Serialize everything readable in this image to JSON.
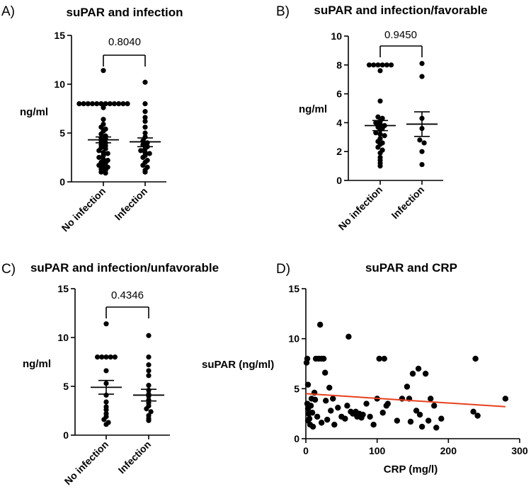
{
  "chart_data": [
    {
      "id": "A",
      "type": "scatter",
      "panel_letter": "A)",
      "title": "suPAR and infection",
      "ylabel": "ng/ml",
      "ylim": [
        0,
        15
      ],
      "yticks": [
        0,
        5,
        10,
        15
      ],
      "categories": [
        "No infection",
        "Infection"
      ],
      "comparison_p": "0.8040",
      "series": [
        {
          "name": "No infection",
          "mean": 4.3,
          "sem_low": 4.0,
          "sem_high": 4.6,
          "values": [
            11.4,
            8.0,
            8.0,
            8.0,
            8.0,
            8.0,
            8.0,
            8.0,
            8.0,
            8.0,
            8.0,
            8.0,
            8.0,
            7.6,
            6.4,
            5.9,
            5.6,
            5.4,
            5.2,
            4.9,
            4.7,
            4.5,
            4.4,
            4.2,
            4.0,
            3.8,
            3.7,
            3.5,
            3.4,
            3.2,
            3.0,
            2.9,
            2.7,
            2.5,
            2.3,
            2.2,
            2.0,
            1.9,
            1.7,
            1.6,
            1.5,
            1.3,
            1.2,
            1.0,
            0.9
          ]
        },
        {
          "name": "Infection",
          "mean": 4.1,
          "sem_low": 3.6,
          "sem_high": 4.5,
          "values": [
            10.2,
            8.0,
            7.2,
            6.6,
            6.2,
            5.6,
            5.0,
            4.6,
            4.2,
            4.0,
            3.8,
            3.6,
            3.4,
            3.2,
            3.0,
            2.9,
            2.7,
            2.5,
            2.2,
            2.0,
            1.7,
            1.5,
            1.2,
            1.0
          ]
        }
      ]
    },
    {
      "id": "B",
      "type": "scatter",
      "panel_letter": "B)",
      "title": "suPAR and infection/favorable",
      "ylabel": "ng/ml",
      "ylim": [
        0,
        10
      ],
      "yticks": [
        0,
        2,
        4,
        6,
        8,
        10
      ],
      "categories": [
        "No infection",
        "Infection"
      ],
      "comparison_p": "0.9450",
      "series": [
        {
          "name": "No infection",
          "mean": 3.8,
          "sem_low": 3.45,
          "sem_high": 4.15,
          "values": [
            8.0,
            8.0,
            8.0,
            8.0,
            8.0,
            8.0,
            7.6,
            5.5,
            4.4,
            4.3,
            4.1,
            4.0,
            3.9,
            3.8,
            3.7,
            3.6,
            3.5,
            3.3,
            3.2,
            3.1,
            2.9,
            2.7,
            2.6,
            2.5,
            2.3,
            2.1,
            1.9,
            1.6,
            1.4,
            1.2,
            1.0
          ]
        },
        {
          "name": "Infection",
          "mean": 3.9,
          "sem_low": 3.05,
          "sem_high": 4.75,
          "values": [
            8.1,
            7.2,
            4.3,
            3.6,
            2.8,
            2.6,
            2.0,
            1.1
          ]
        }
      ]
    },
    {
      "id": "C",
      "type": "scatter",
      "panel_letter": "C)",
      "title": "suPAR and infection/unfavorable",
      "ylabel": "ng/ml",
      "ylim": [
        0,
        15
      ],
      "yticks": [
        0,
        5,
        10,
        15
      ],
      "categories": [
        "No infection",
        "Infection"
      ],
      "comparison_p": "0.4346",
      "series": [
        {
          "name": "No infection",
          "mean": 4.9,
          "sem_low": 4.2,
          "sem_high": 5.6,
          "values": [
            11.4,
            8.0,
            8.0,
            8.0,
            8.0,
            8.0,
            6.6,
            5.3,
            4.1,
            3.4,
            2.9,
            2.6,
            2.2,
            1.9,
            1.6,
            1.3,
            1.1
          ]
        },
        {
          "name": "Infection",
          "mean": 4.1,
          "sem_low": 3.5,
          "sem_high": 4.7,
          "values": [
            10.2,
            8.0,
            7.2,
            6.6,
            6.1,
            5.1,
            4.6,
            4.2,
            4.0,
            3.6,
            3.3,
            3.0,
            2.7,
            2.4,
            2.0,
            1.7,
            1.5
          ]
        }
      ]
    },
    {
      "id": "D",
      "type": "scatter",
      "panel_letter": "D)",
      "title": "suPAR and CRP",
      "xlabel": "CRP (mg/l)",
      "ylabel": "suPAR (ng/ml)",
      "xlim": [
        0,
        300
      ],
      "ylim": [
        0,
        15
      ],
      "xticks": [
        0,
        100,
        200,
        300
      ],
      "yticks": [
        0,
        5,
        10,
        15
      ],
      "regression": {
        "x": [
          0,
          280
        ],
        "y": [
          4.5,
          3.2
        ],
        "color": "#e8401c"
      },
      "points": [
        {
          "x": 1,
          "y": 7.6
        },
        {
          "x": 2,
          "y": 8.0
        },
        {
          "x": 3,
          "y": 5.4
        },
        {
          "x": 2,
          "y": 3.5
        },
        {
          "x": 3,
          "y": 3.0
        },
        {
          "x": 4,
          "y": 2.5
        },
        {
          "x": 5,
          "y": 2.0
        },
        {
          "x": 6,
          "y": 1.4
        },
        {
          "x": 3,
          "y": 1.8
        },
        {
          "x": 7,
          "y": 3.3
        },
        {
          "x": 8,
          "y": 4.0
        },
        {
          "x": 9,
          "y": 2.6
        },
        {
          "x": 10,
          "y": 1.2
        },
        {
          "x": 12,
          "y": 4.6
        },
        {
          "x": 13,
          "y": 3.9
        },
        {
          "x": 14,
          "y": 8.0
        },
        {
          "x": 16,
          "y": 2.2
        },
        {
          "x": 18,
          "y": 8.0
        },
        {
          "x": 20,
          "y": 11.4
        },
        {
          "x": 22,
          "y": 8.0
        },
        {
          "x": 22,
          "y": 1.6
        },
        {
          "x": 25,
          "y": 8.0
        },
        {
          "x": 27,
          "y": 6.6
        },
        {
          "x": 28,
          "y": 3.8
        },
        {
          "x": 30,
          "y": 1.9
        },
        {
          "x": 33,
          "y": 5.1
        },
        {
          "x": 35,
          "y": 2.8
        },
        {
          "x": 38,
          "y": 4.0
        },
        {
          "x": 40,
          "y": 1.4
        },
        {
          "x": 45,
          "y": 3.1
        },
        {
          "x": 50,
          "y": 2.2
        },
        {
          "x": 55,
          "y": 2.0
        },
        {
          "x": 58,
          "y": 3.3
        },
        {
          "x": 60,
          "y": 10.2
        },
        {
          "x": 63,
          "y": 2.7
        },
        {
          "x": 66,
          "y": 2.5
        },
        {
          "x": 70,
          "y": 2.7
        },
        {
          "x": 72,
          "y": 2.2
        },
        {
          "x": 75,
          "y": 2.5
        },
        {
          "x": 78,
          "y": 2.1
        },
        {
          "x": 80,
          "y": 2.4
        },
        {
          "x": 85,
          "y": 3.5
        },
        {
          "x": 90,
          "y": 2.2
        },
        {
          "x": 95,
          "y": 1.4
        },
        {
          "x": 100,
          "y": 4.0
        },
        {
          "x": 103,
          "y": 8.0
        },
        {
          "x": 108,
          "y": 2.6
        },
        {
          "x": 110,
          "y": 8.0
        },
        {
          "x": 113,
          "y": 3.3
        },
        {
          "x": 115,
          "y": 3.5
        },
        {
          "x": 128,
          "y": 1.8
        },
        {
          "x": 135,
          "y": 4.0
        },
        {
          "x": 142,
          "y": 5.2
        },
        {
          "x": 145,
          "y": 4.0
        },
        {
          "x": 147,
          "y": 1.7
        },
        {
          "x": 150,
          "y": 6.5
        },
        {
          "x": 155,
          "y": 2.8
        },
        {
          "x": 158,
          "y": 7.0
        },
        {
          "x": 160,
          "y": 2.4
        },
        {
          "x": 163,
          "y": 1.2
        },
        {
          "x": 168,
          "y": 6.5
        },
        {
          "x": 172,
          "y": 1.8
        },
        {
          "x": 175,
          "y": 4.0
        },
        {
          "x": 180,
          "y": 3.3
        },
        {
          "x": 183,
          "y": 1.1
        },
        {
          "x": 190,
          "y": 2.0
        },
        {
          "x": 235,
          "y": 2.7
        },
        {
          "x": 238,
          "y": 8.0
        },
        {
          "x": 241,
          "y": 2.3
        },
        {
          "x": 280,
          "y": 4.0
        }
      ]
    }
  ]
}
